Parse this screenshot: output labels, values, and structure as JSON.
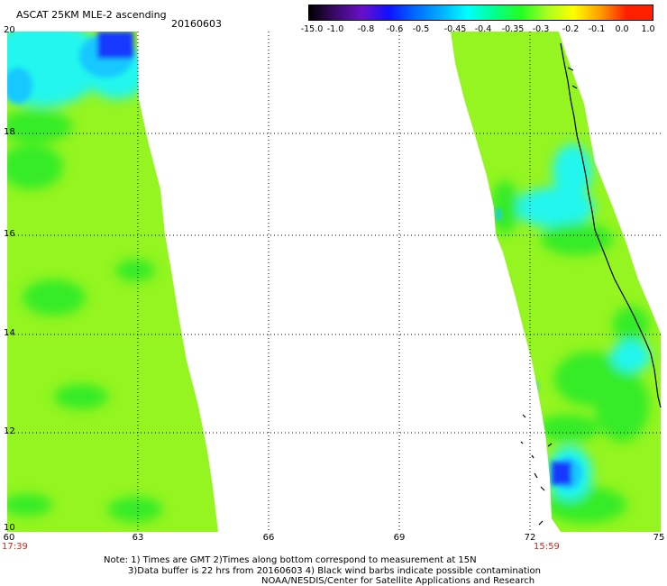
{
  "header": {
    "title": "ASCAT 25KM MLE-2 ascending",
    "date": "20160603"
  },
  "colorbar": {
    "labels": [
      "-15.0",
      "-1.0",
      "-0.8",
      "-0.6",
      "-0.5",
      "-0.45",
      "-0.4",
      "-0.35",
      "-0.3",
      "-0.2",
      "-0.1",
      "0.0",
      "1.0"
    ],
    "colors": [
      "#000000",
      "#3a0a6a",
      "#6a10c8",
      "#1010ff",
      "#0068ff",
      "#00b0ff",
      "#00ffff",
      "#00ff90",
      "#22ff22",
      "#a8ff20",
      "#ffff00",
      "#ffa000",
      "#ff2000"
    ]
  },
  "axes": {
    "lon_ticks": [
      "60",
      "63",
      "66",
      "69",
      "72",
      "75"
    ],
    "lat_ticks": [
      "20",
      "18",
      "16",
      "14",
      "12",
      "10"
    ]
  },
  "times": {
    "left": "17:39",
    "right": "15:59"
  },
  "notes": {
    "line1": "Note: 1) Times are GMT 2)Times along bottom correspond to measurement at 15N",
    "line2": "3)Data buffer is 22 hrs from 20160603 4) Black wind barbs indicate possible contamination",
    "line3": "NOAA/NESDIS/Center for Satellite Applications and Research"
  },
  "map_colors": {
    "base": "#94f520",
    "green": "#36ec28",
    "cyan": "#20f6ee",
    "sky": "#16c8ff",
    "blue": "#1438ff"
  }
}
